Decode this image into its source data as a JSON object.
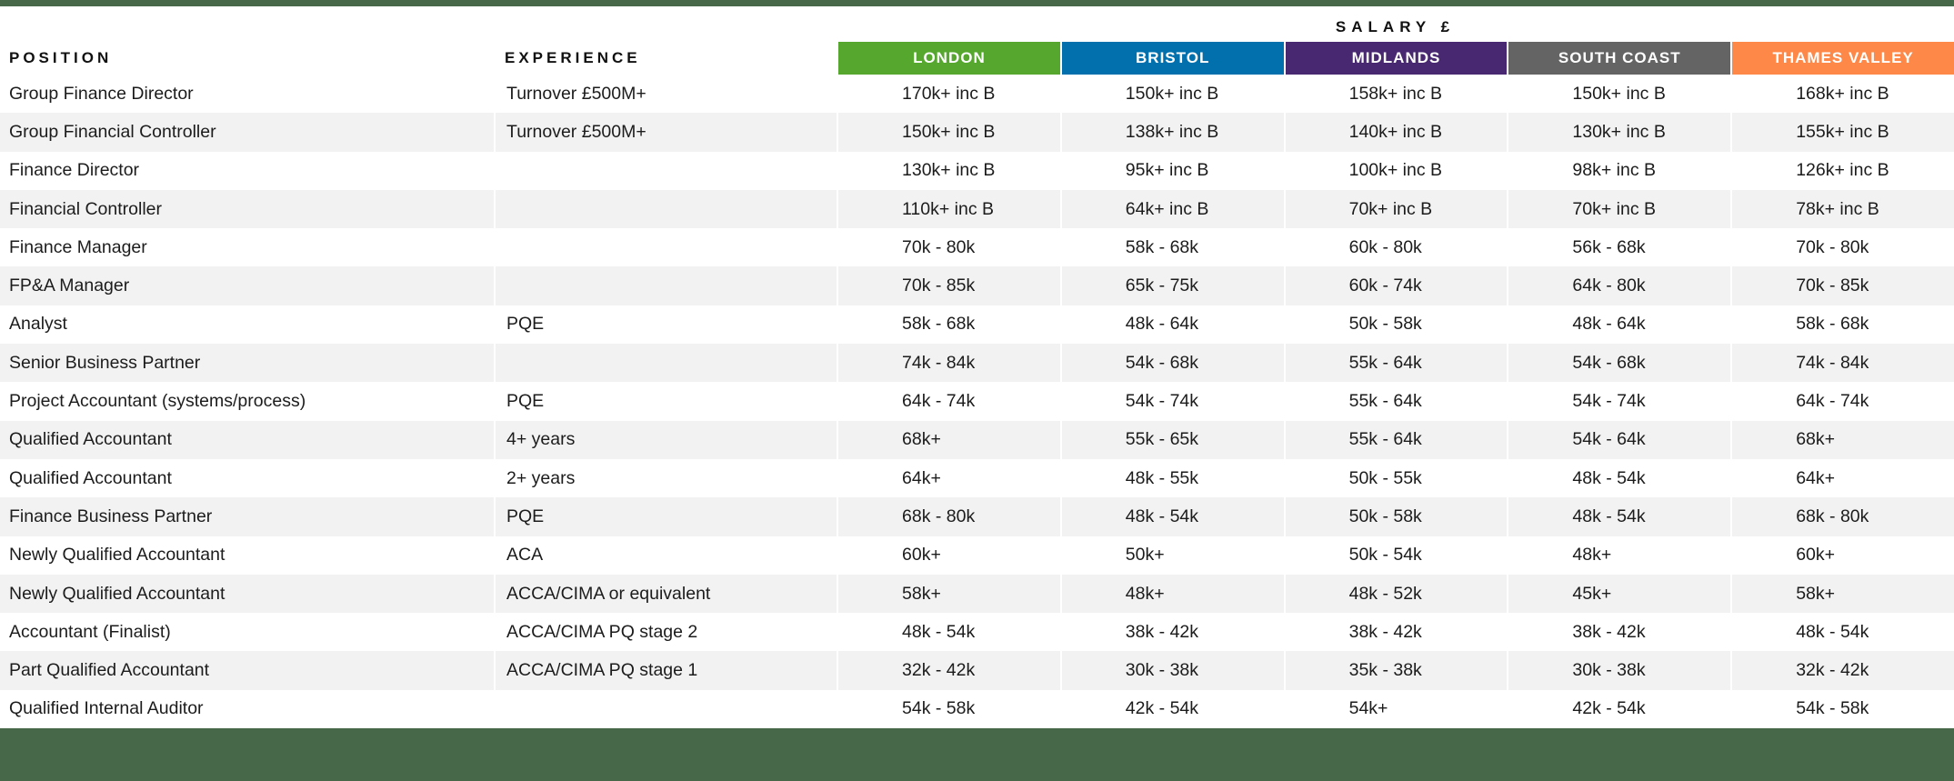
{
  "colors": {
    "accent_bar": "#47694a",
    "row_alt": "#f2f2f2",
    "text": "#1c1c1c"
  },
  "table": {
    "salary_header": "SALARY £",
    "position_header": "POSITION",
    "experience_header": "EXPERIENCE",
    "regions": [
      {
        "label": "LONDON",
        "color": "#56a72e"
      },
      {
        "label": "BRISTOL",
        "color": "#0270ad"
      },
      {
        "label": "MIDLANDS",
        "color": "#482870"
      },
      {
        "label": "SOUTH COAST",
        "color": "#646464"
      },
      {
        "label": "THAMES VALLEY",
        "color": "#fd8848"
      }
    ],
    "rows": [
      {
        "position": "Group Finance Director",
        "experience": "Turnover £500M+",
        "values": [
          "170k+ inc B",
          "150k+ inc B",
          "158k+ inc B",
          "150k+ inc B",
          "168k+ inc B"
        ]
      },
      {
        "position": "Group Financial Controller",
        "experience": "Turnover £500M+",
        "values": [
          "150k+ inc B",
          "138k+ inc B",
          "140k+ inc B",
          "130k+ inc B",
          "155k+ inc B"
        ]
      },
      {
        "position": "Finance Director",
        "experience": "",
        "values": [
          "130k+ inc B",
          "95k+ inc B",
          "100k+ inc B",
          "98k+ inc B",
          "126k+ inc B"
        ]
      },
      {
        "position": "Financial Controller",
        "experience": "",
        "values": [
          "110k+ inc B",
          "64k+ inc B",
          "70k+ inc B",
          "70k+ inc B",
          "78k+ inc B"
        ]
      },
      {
        "position": "Finance Manager",
        "experience": "",
        "values": [
          "70k - 80k",
          "58k - 68k",
          "60k - 80k",
          "56k - 68k",
          "70k - 80k"
        ]
      },
      {
        "position": "FP&A Manager",
        "experience": "",
        "values": [
          "70k - 85k",
          "65k - 75k",
          "60k - 74k",
          "64k - 80k",
          "70k - 85k"
        ]
      },
      {
        "position": "Analyst",
        "experience": "PQE",
        "values": [
          "58k - 68k",
          "48k - 64k",
          "50k - 58k",
          "48k - 64k",
          "58k - 68k"
        ]
      },
      {
        "position": "Senior Business Partner",
        "experience": "",
        "values": [
          "74k - 84k",
          "54k - 68k",
          "55k - 64k",
          "54k - 68k",
          "74k - 84k"
        ]
      },
      {
        "position": "Project Accountant (systems/process)",
        "experience": "PQE",
        "values": [
          "64k - 74k",
          "54k - 74k",
          "55k - 64k",
          "54k - 74k",
          "64k - 74k"
        ]
      },
      {
        "position": "Qualified Accountant",
        "experience": "4+ years",
        "values": [
          "68k+",
          "55k - 65k",
          "55k - 64k",
          "54k - 64k",
          "68k+"
        ]
      },
      {
        "position": "Qualified Accountant",
        "experience": "2+ years",
        "values": [
          "64k+",
          "48k - 55k",
          "50k - 55k",
          "48k - 54k",
          "64k+"
        ]
      },
      {
        "position": "Finance Business Partner",
        "experience": "PQE",
        "values": [
          "68k - 80k",
          "48k - 54k",
          "50k - 58k",
          "48k - 54k",
          "68k - 80k"
        ]
      },
      {
        "position": "Newly Qualified Accountant",
        "experience": "ACA",
        "values": [
          "60k+",
          "50k+",
          "50k - 54k",
          "48k+",
          "60k+"
        ]
      },
      {
        "position": "Newly Qualified Accountant",
        "experience": "ACCA/CIMA or equivalent",
        "values": [
          "58k+",
          "48k+",
          "48k - 52k",
          "45k+",
          "58k+"
        ]
      },
      {
        "position": "Accountant (Finalist)",
        "experience": "ACCA/CIMA PQ stage 2",
        "values": [
          "48k - 54k",
          "38k - 42k",
          "38k - 42k",
          "38k - 42k",
          "48k - 54k"
        ]
      },
      {
        "position": "Part Qualified Accountant",
        "experience": "ACCA/CIMA PQ stage 1",
        "values": [
          "32k - 42k",
          "30k - 38k",
          "35k - 38k",
          "30k - 38k",
          "32k - 42k"
        ]
      },
      {
        "position": "Qualified Internal Auditor",
        "experience": "",
        "values": [
          "54k - 58k",
          "42k - 54k",
          "54k+",
          "42k - 54k",
          "54k - 58k"
        ]
      }
    ]
  }
}
